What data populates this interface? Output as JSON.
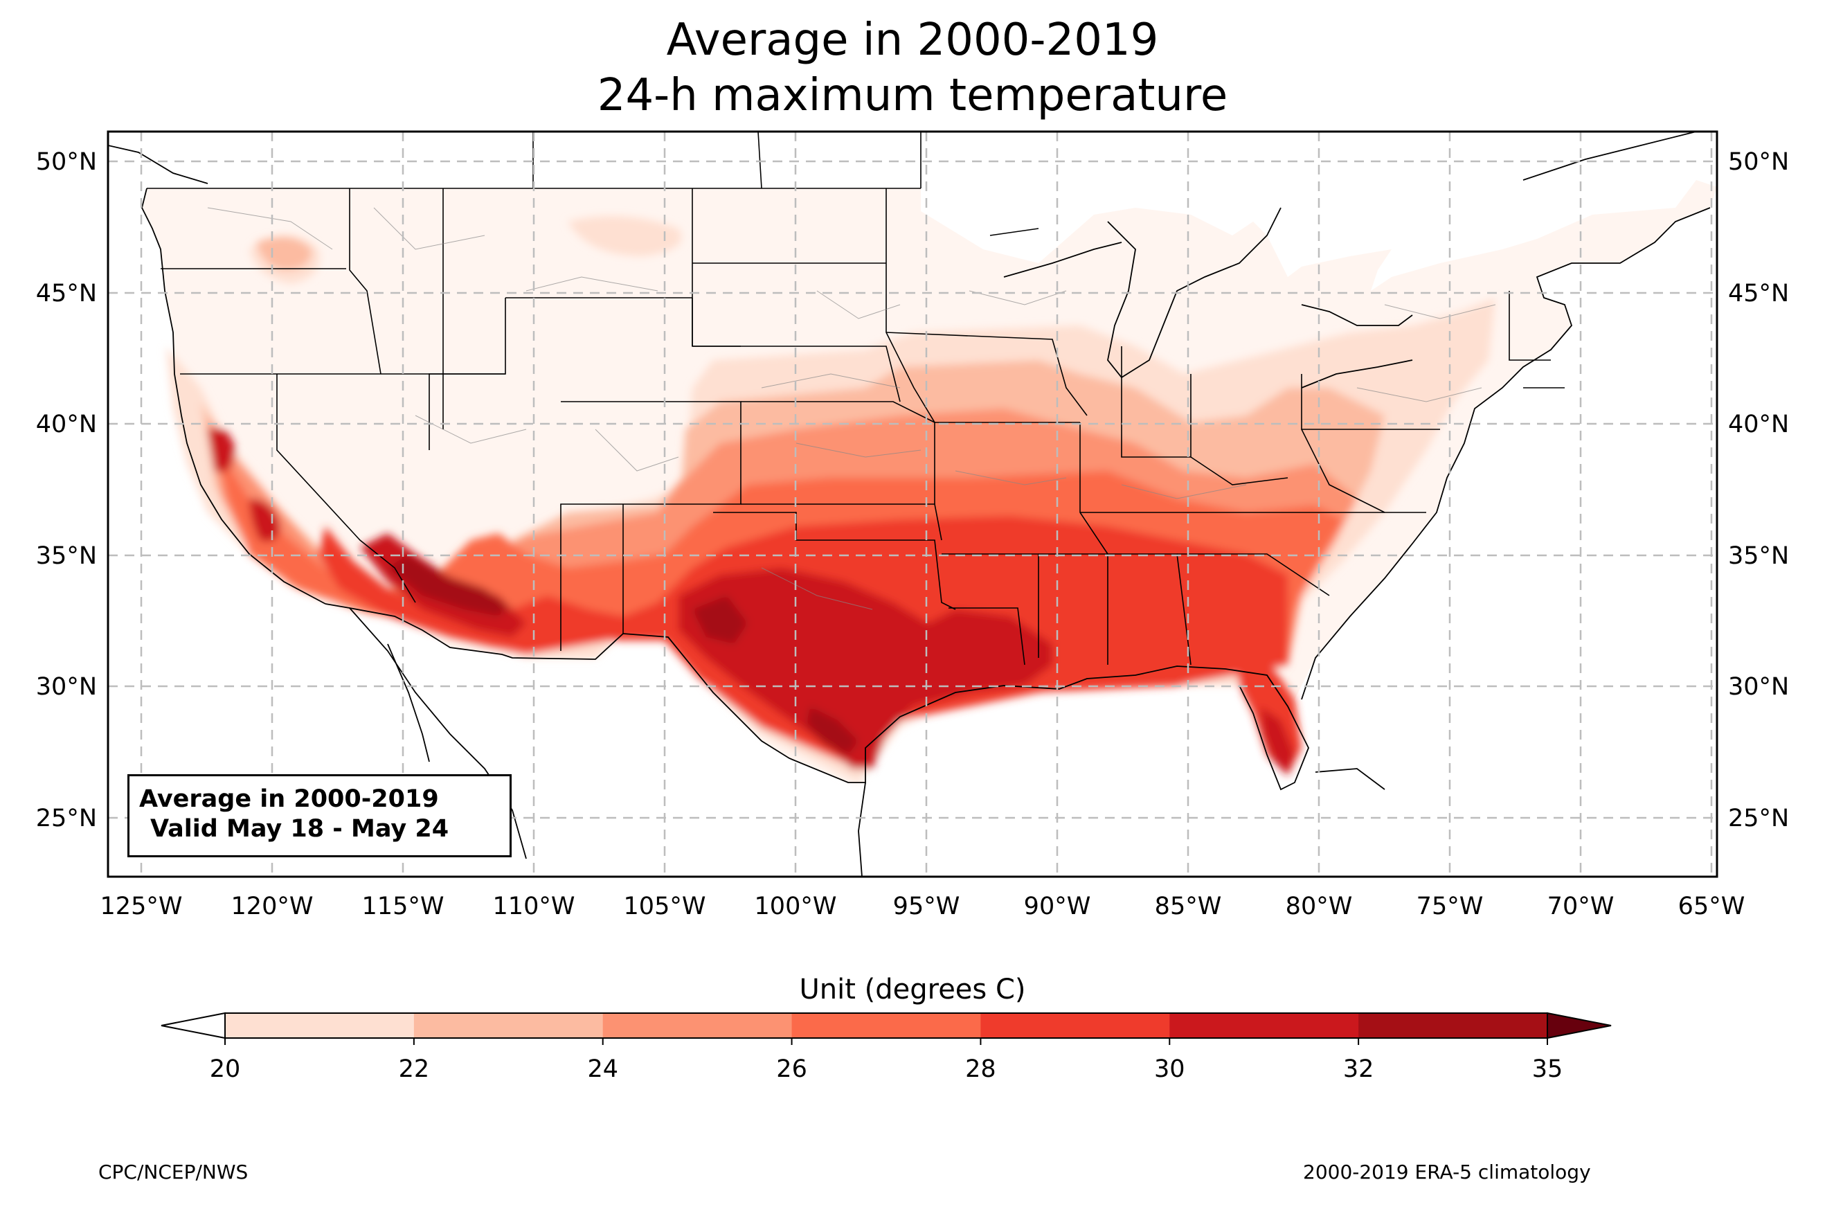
{
  "title": {
    "line1": "Average in 2000-2019",
    "line2": "24-h maximum temperature"
  },
  "info_box": {
    "line1": "Average in 2000-2019",
    "line2": "Valid May 18 - May 24"
  },
  "map": {
    "lat_labels": [
      "50°N",
      "45°N",
      "40°N",
      "35°N",
      "30°N",
      "25°N"
    ],
    "lon_labels": [
      "125°W",
      "120°W",
      "115°W",
      "110°W",
      "105°W",
      "100°W",
      "95°W",
      "90°W",
      "85°W",
      "80°W",
      "75°W",
      "70°W",
      "65°W"
    ],
    "region": "Contiguous United States",
    "gridlines": true
  },
  "colorbar": {
    "label": "Unit (degrees C)",
    "ticks": [
      "20",
      "22",
      "24",
      "26",
      "28",
      "30",
      "32",
      "35"
    ],
    "colors": [
      "#fee0d2",
      "#fcbba1",
      "#fc9272",
      "#fb6a4a",
      "#ef3b2c",
      "#cb181d",
      "#a50f15",
      "#67000d"
    ],
    "extend_low_color": "#ffffff",
    "extend_high_color": "#67000d"
  },
  "footer": {
    "left": "CPC/NCEP/NWS",
    "right": "2000-2019 ERA-5 climatology"
  }
}
